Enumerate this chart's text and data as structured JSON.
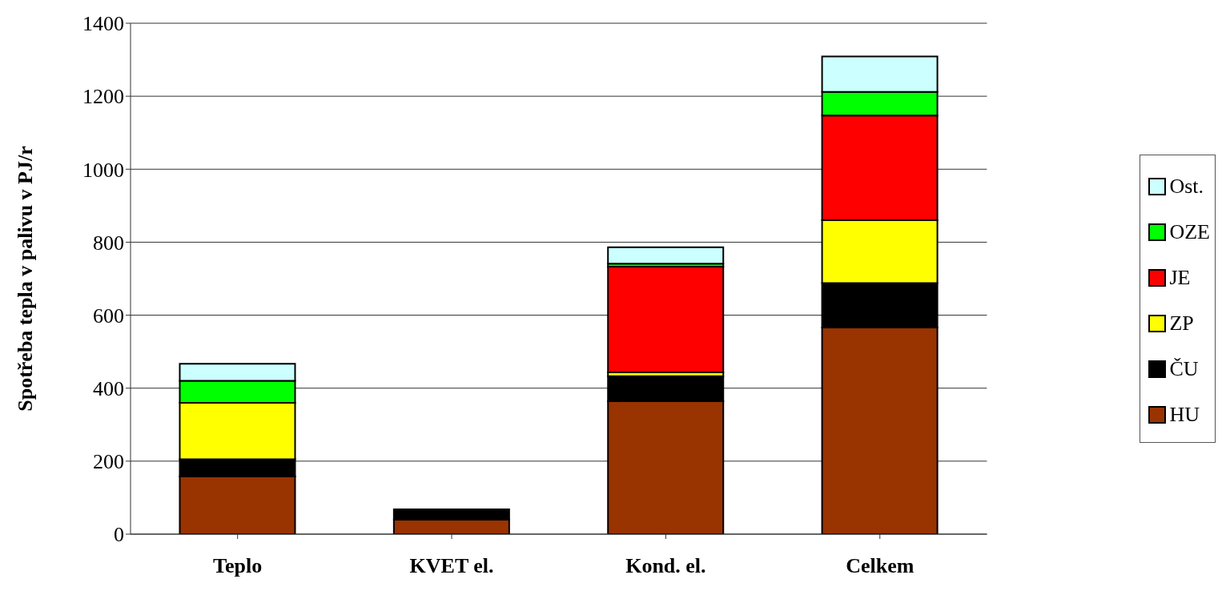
{
  "chart_data": {
    "type": "bar",
    "stacked": true,
    "ylabel": "Spotřeba tepla v palivu v PJ/r",
    "categories": [
      "Teplo",
      "KVET el.",
      "Kond. el.",
      "Celkem"
    ],
    "series": [
      {
        "name": "HU",
        "color": "#993300",
        "values": [
          158,
          40,
          364,
          566
        ]
      },
      {
        "name": "ČU",
        "color": "#000000",
        "values": [
          47,
          28,
          69,
          122
        ]
      },
      {
        "name": "ZP",
        "color": "#ffff00",
        "values": [
          155,
          0,
          10,
          172
        ]
      },
      {
        "name": "JE",
        "color": "#ff0000",
        "values": [
          0,
          0,
          290,
          287
        ]
      },
      {
        "name": "OZE",
        "color": "#00ff00",
        "values": [
          60,
          0,
          8,
          65
        ]
      },
      {
        "name": "Ost.",
        "color": "#ccffff",
        "values": [
          47,
          0,
          45,
          97
        ]
      }
    ],
    "ylim": [
      0,
      1400
    ],
    "yticks": [
      0,
      200,
      400,
      600,
      800,
      1000,
      1200,
      1400
    ],
    "grid": "y",
    "legend": "right"
  }
}
